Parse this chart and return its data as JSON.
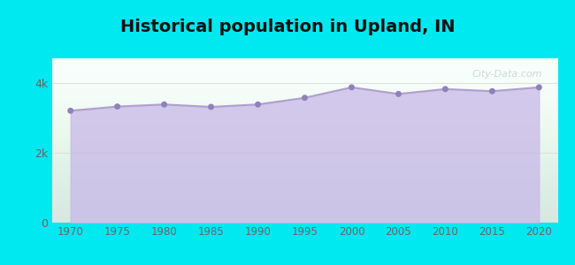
{
  "title": "Historical population in Upland, IN",
  "title_fontsize": 14,
  "title_fontweight": "bold",
  "years": [
    1970,
    1975,
    1980,
    1985,
    1990,
    1995,
    2000,
    2005,
    2010,
    2015,
    2020
  ],
  "population": [
    3200,
    3320,
    3380,
    3310,
    3380,
    3570,
    3870,
    3680,
    3820,
    3760,
    3870
  ],
  "line_color": "#b0a0cc",
  "fill_color": "#c8b8e8",
  "fill_alpha": 0.75,
  "marker_color": "#9080bb",
  "marker_size": 5,
  "bg_outer": "#00e8f0",
  "bg_plot": "#f5fff5",
  "ylim": [
    0,
    4700
  ],
  "yticks": [
    0,
    2000,
    4000
  ],
  "ytick_labels": [
    "0",
    "2k",
    "4k"
  ],
  "xticks": [
    1970,
    1975,
    1980,
    1985,
    1990,
    1995,
    2000,
    2005,
    2010,
    2015,
    2020
  ],
  "grid_color": "#e0e0e0",
  "watermark_text": "City-Data.com",
  "watermark_color": "#b0c0c0",
  "watermark_alpha": 0.6
}
